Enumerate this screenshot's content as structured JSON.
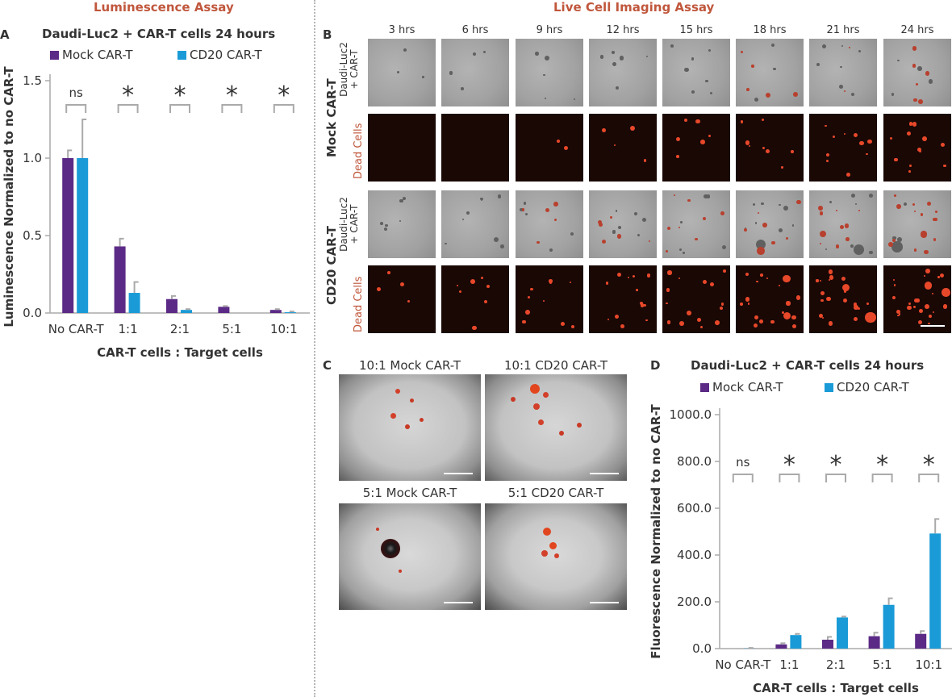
{
  "section_titles": {
    "luminescence": "Luminescence Assay",
    "live_cell": "Live Cell Imaging Assay"
  },
  "panels": {
    "a": "A",
    "b": "B",
    "c": "C",
    "d": "D"
  },
  "colors": {
    "mock": "#5b2a86",
    "cd20": "#1a9bd7",
    "accent": "#c0573c",
    "axis": "#aaaaaa",
    "error": "#aaaaaa"
  },
  "legend": {
    "mock": "Mock CAR-T",
    "cd20": "CD20 CAR-T"
  },
  "panel_b": {
    "times": [
      "3 hrs",
      "6 hrs",
      "9 hrs",
      "12 hrs",
      "15 hrs",
      "18 hrs",
      "21 hrs",
      "24 hrs"
    ],
    "group_mock": "Mock CAR-T",
    "group_cd20": "CD20 CAR-T",
    "row_sub_line1": "Daudi-Luc2",
    "row_sub_line2": "+ CAR-T",
    "row_dead": "Dead Cells"
  },
  "panel_c": {
    "labels": [
      "10:1 Mock CAR-T",
      "10:1 CD20 CAR-T",
      "5:1 Mock CAR-T",
      "5:1 CD20 CAR-T"
    ]
  },
  "chart_data": [
    {
      "type": "bar",
      "title": "Daudi-Luc2 + CAR-T cells 24 hours",
      "xlabel": "CAR-T cells : Target cells",
      "ylabel": "Luminescence Normalized to no CAR-T",
      "categories": [
        "No CAR-T",
        "1:1",
        "2:1",
        "5:1",
        "10:1"
      ],
      "ylim": [
        0,
        1.5
      ],
      "yticks": [
        "0.0",
        "0.5",
        "1.0",
        "1.5"
      ],
      "significance": [
        "ns",
        "*",
        "*",
        "*",
        "*"
      ],
      "series": [
        {
          "name": "Mock CAR-T",
          "values": [
            1.0,
            0.43,
            0.09,
            0.04,
            0.02
          ],
          "errors": [
            0.05,
            0.05,
            0.02,
            0.005,
            0.005
          ]
        },
        {
          "name": "CD20 CAR-T",
          "values": [
            1.0,
            0.13,
            0.02,
            0.0,
            0.005
          ],
          "errors": [
            0.25,
            0.07,
            0.005,
            0.0,
            0.005
          ]
        }
      ],
      "legend_position": "top-left"
    },
    {
      "type": "bar",
      "title": "Daudi-Luc2 + CAR-T cells 24 hours",
      "xlabel": "CAR-T cells : Target cells",
      "ylabel": "Fluorescence Normalized to no CAR-T",
      "categories": [
        "No CAR-T",
        "1:1",
        "2:1",
        "5:1",
        "10:1"
      ],
      "ylim": [
        0,
        1000
      ],
      "yticks": [
        "0.0",
        "200.0",
        "400.0",
        "600.0",
        "800.0",
        "1000.0"
      ],
      "significance": [
        "ns",
        "*",
        "*",
        "*",
        "*"
      ],
      "series": [
        {
          "name": "Mock CAR-T",
          "values": [
            0,
            18,
            38,
            53,
            63
          ],
          "errors": [
            0,
            5,
            12,
            15,
            12
          ]
        },
        {
          "name": "CD20 CAR-T",
          "values": [
            1,
            58,
            133,
            187,
            492
          ],
          "errors": [
            2,
            5,
            4,
            28,
            62
          ]
        }
      ],
      "legend_position": "top"
    }
  ]
}
